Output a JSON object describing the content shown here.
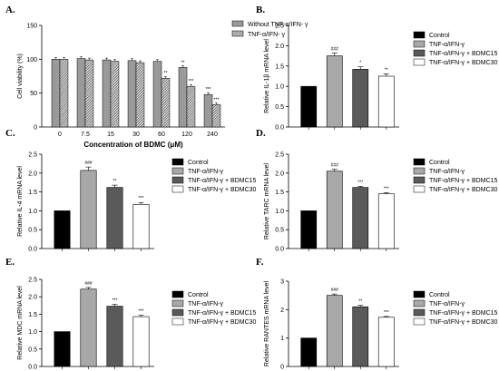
{
  "colors": {
    "control": "#000000",
    "tnf": "#a8a8a8",
    "bdmc15": "#5a5a5a",
    "bdmc30": "#ffffff",
    "without_tnf": "#9a9a9a",
    "with_tnf_hatch": "#3c3c3c"
  },
  "chart_data": [
    {
      "id": "A",
      "panel_label": "A.",
      "type": "bar",
      "ylabel": "Cell viability (%)",
      "xlabel": "Concentration of BDMC (μM)",
      "ylim": [
        0,
        150
      ],
      "yticks": [
        "0",
        "50",
        "100",
        "150"
      ],
      "categories": [
        "0",
        "7.5",
        "15",
        "30",
        "60",
        "120",
        "240"
      ],
      "legend_position": "top-right",
      "series": [
        {
          "name": "Without TNF-α/IFN- γ",
          "values": [
            100,
            101,
            99,
            98,
            97,
            88,
            48
          ]
        },
        {
          "name": "TNF-α/IFN- γ",
          "values": [
            100,
            99,
            97,
            95,
            72,
            60,
            33
          ]
        }
      ],
      "annotations": [
        {
          "category": "60",
          "series": 1,
          "text": "**"
        },
        {
          "category": "120",
          "series": 0,
          "text": "**"
        },
        {
          "category": "120",
          "series": 1,
          "text": "***"
        },
        {
          "category": "240",
          "series": 0,
          "text": "***"
        },
        {
          "category": "240",
          "series": 1,
          "text": "***"
        }
      ]
    },
    {
      "id": "B",
      "panel_label": "B.",
      "type": "bar",
      "ylabel": "Relative IL-1β mRNA level",
      "ylim": [
        0,
        2.5
      ],
      "yticks": [
        "0.0",
        "0.5",
        "1.0",
        "1.5",
        "2.0",
        "2.5"
      ],
      "categories": [
        "Control",
        "TNF-α/IFN-γ",
        "TNF-α/IFN-γ + BDMC15",
        "TNF-α/IFN-γ + BDMC30"
      ],
      "legend_position": "right",
      "values": [
        1.0,
        1.75,
        1.42,
        1.25
      ],
      "errors": [
        0,
        0.07,
        0.06,
        0.06
      ],
      "annotations": [
        "",
        "###",
        "*",
        "**"
      ]
    },
    {
      "id": "C",
      "panel_label": "C.",
      "type": "bar",
      "ylabel": "Relative IL-4 mRNA level",
      "ylim": [
        0,
        2.5
      ],
      "yticks": [
        "0.0",
        "0.5",
        "1.0",
        "1.5",
        "2.0",
        "2.5"
      ],
      "categories": [
        "Control",
        "TNF-α/IFN-γ",
        "TNF-α/IFN-γ + BDMC15",
        "TNF-α/IFN-γ + BDMC30"
      ],
      "legend_position": "right",
      "values": [
        1.0,
        2.07,
        1.62,
        1.17
      ],
      "errors": [
        0,
        0.09,
        0.06,
        0.05
      ],
      "annotations": [
        "",
        "###",
        "**",
        "***"
      ]
    },
    {
      "id": "D",
      "panel_label": "D.",
      "type": "bar",
      "ylabel": "Relative TARC mRNA level",
      "ylim": [
        0,
        2.5
      ],
      "yticks": [
        "0.0",
        "0.5",
        "1.0",
        "1.5",
        "2.0",
        "2.5"
      ],
      "categories": [
        "Control",
        "TNF-α/IFN-γ",
        "TNF-α/IFN-γ + BDMC15",
        "TNF-α/IFN-γ + BDMC30"
      ],
      "legend_position": "right",
      "values": [
        1.0,
        2.05,
        1.62,
        1.45
      ],
      "errors": [
        0,
        0.05,
        0.03,
        0.03
      ],
      "annotations": [
        "",
        "###",
        "***",
        "***"
      ]
    },
    {
      "id": "E",
      "panel_label": "E.",
      "type": "bar",
      "ylabel": "Relative MDC mRNA level",
      "ylim": [
        0,
        2.5
      ],
      "yticks": [
        "0.0",
        "0.5",
        "1.0",
        "1.5",
        "2.0",
        "2.5"
      ],
      "categories": [
        "Control",
        "TNF-α/IFN-γ",
        "TNF-α/IFN-γ + BDMC15",
        "TNF-α/IFN-γ + BDMC30"
      ],
      "legend_position": "right",
      "values": [
        1.0,
        2.22,
        1.73,
        1.43
      ],
      "errors": [
        0,
        0.05,
        0.05,
        0.04
      ],
      "annotations": [
        "",
        "###",
        "***",
        "***"
      ]
    },
    {
      "id": "F",
      "panel_label": "F.",
      "type": "bar",
      "ylabel": "Relative RANTES mRNA level",
      "ylim": [
        0,
        3
      ],
      "yticks": [
        "0",
        "1",
        "2",
        "3"
      ],
      "categories": [
        "Control",
        "TNF-α/IFN-γ",
        "TNF-α/IFN-γ + BDMC15",
        "TNF-α/IFN-γ + BDMC30"
      ],
      "legend_position": "right",
      "values": [
        1.0,
        2.5,
        2.1,
        1.73
      ],
      "errors": [
        0,
        0.05,
        0.05,
        0.03
      ],
      "annotations": [
        "",
        "###",
        "**",
        "***"
      ]
    }
  ]
}
